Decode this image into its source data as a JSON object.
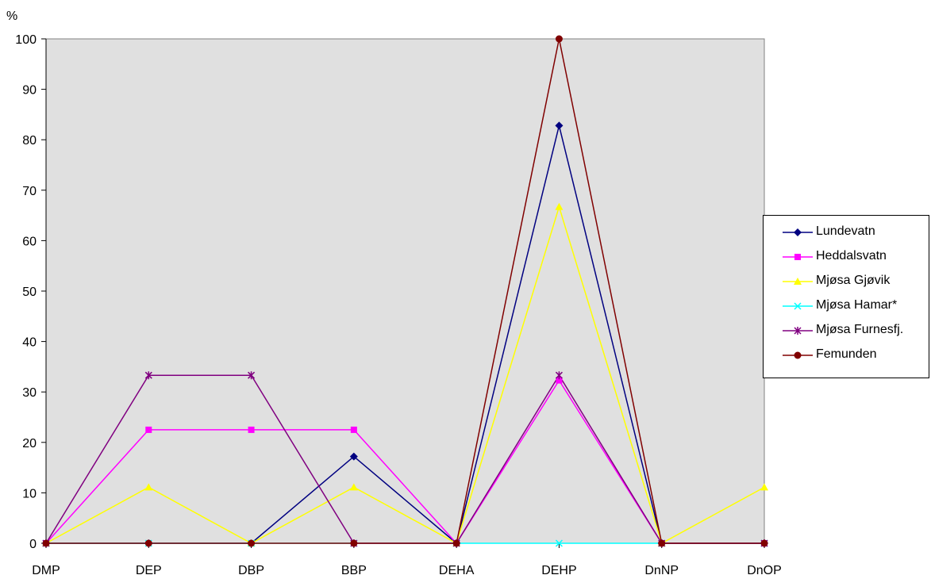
{
  "chart_data": {
    "type": "line",
    "title": "",
    "ylabel": "%",
    "xlabel": "",
    "ylim": [
      0,
      100
    ],
    "yticks": [
      "0",
      "10",
      "20",
      "30",
      "40",
      "50",
      "60",
      "70",
      "80",
      "90",
      "100"
    ],
    "categories": [
      "DMP",
      "DEP",
      "DBP",
      "BBP",
      "DEHA",
      "DEHP",
      "DnNP",
      "DnOP"
    ],
    "plot_background": "#e0e0e0",
    "legend_placement": "right",
    "series": [
      {
        "name": "Lundevatn",
        "color": "#000080",
        "marker": "diamond",
        "values": [
          0,
          0,
          0,
          17.2,
          0,
          82.8,
          0,
          0
        ]
      },
      {
        "name": "Heddalsvatn",
        "color": "#ff00ff",
        "marker": "square",
        "values": [
          0,
          22.5,
          22.5,
          22.5,
          0,
          32.3,
          0,
          0
        ]
      },
      {
        "name": "Mjøsa Gjøvik",
        "color": "#ffff00",
        "marker": "triangle",
        "values": [
          0,
          11.1,
          0,
          11.1,
          0,
          66.7,
          0,
          11.1
        ]
      },
      {
        "name": "Mjøsa Hamar*",
        "color": "#00ffff",
        "marker": "x",
        "values": [
          0,
          0,
          0,
          0,
          0,
          0,
          0,
          0
        ]
      },
      {
        "name": "Mjøsa Furnesfj.",
        "color": "#800080",
        "marker": "star",
        "values": [
          0,
          33.3,
          33.3,
          0,
          0,
          33.3,
          0,
          0
        ]
      },
      {
        "name": "Femunden",
        "color": "#800000",
        "marker": "circle",
        "values": [
          0,
          0,
          0,
          0,
          0,
          100,
          0,
          0
        ]
      }
    ]
  }
}
